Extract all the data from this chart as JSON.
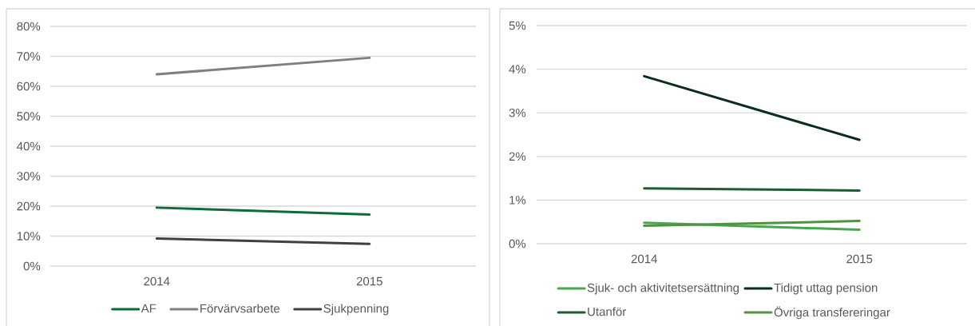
{
  "chart_data": [
    {
      "type": "line",
      "categories": [
        "2014",
        "2015"
      ],
      "series": [
        {
          "name": "AF",
          "color": "#0b6b3a",
          "values": [
            19.5,
            17.2
          ]
        },
        {
          "name": "Förvärvsarbete",
          "color": "#7f7f7f",
          "values": [
            64.0,
            69.5
          ]
        },
        {
          "name": "Sjukpenning",
          "color": "#404040",
          "values": [
            9.2,
            7.4
          ]
        }
      ],
      "ylim": [
        0,
        80
      ],
      "yticks": [
        {
          "value": 0,
          "label": "0%"
        },
        {
          "value": 10,
          "label": "10%"
        },
        {
          "value": 20,
          "label": "20%"
        },
        {
          "value": 30,
          "label": "30%"
        },
        {
          "value": 40,
          "label": "40%"
        },
        {
          "value": 50,
          "label": "50%"
        },
        {
          "value": 60,
          "label": "60%"
        },
        {
          "value": 70,
          "label": "70%"
        },
        {
          "value": 80,
          "label": "80%"
        }
      ],
      "grid": "y",
      "legend": "bottom",
      "line_style": "solid"
    },
    {
      "type": "line",
      "categories": [
        "2014",
        "2015"
      ],
      "series": [
        {
          "name": "Sjuk- och aktivitetsersättning",
          "color": "#45a851",
          "values": [
            0.48,
            0.32
          ]
        },
        {
          "name": "Tidigt uttag pension",
          "color": "#0b2e18",
          "values": [
            3.84,
            2.38
          ]
        },
        {
          "name": "Utanför",
          "color": "#1c5e30",
          "values": [
            1.27,
            1.22
          ]
        },
        {
          "name": "Övriga transfereringar",
          "color": "#52933f",
          "values": [
            0.41,
            0.52
          ]
        }
      ],
      "ylim": [
        0,
        5
      ],
      "yticks": [
        {
          "value": 0,
          "label": "0%"
        },
        {
          "value": 1,
          "label": "1%"
        },
        {
          "value": 2,
          "label": "2%"
        },
        {
          "value": 3,
          "label": "3%"
        },
        {
          "value": 4,
          "label": "4%"
        },
        {
          "value": 5,
          "label": "5%"
        }
      ],
      "grid": "y",
      "legend": "bottom",
      "line_style": "solid"
    }
  ]
}
